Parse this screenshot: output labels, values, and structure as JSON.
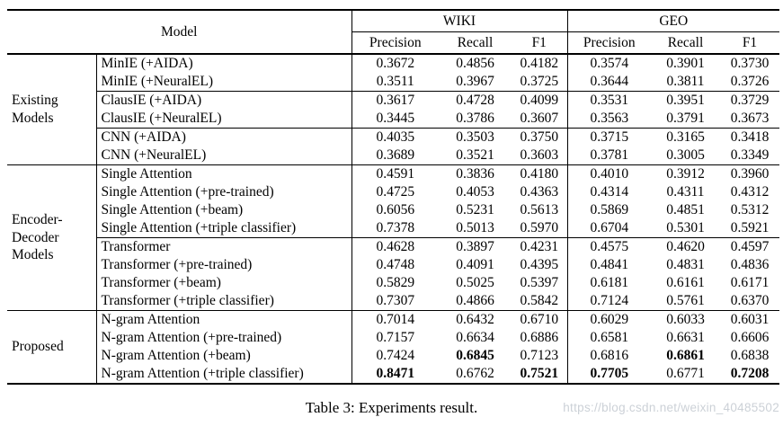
{
  "table": {
    "header": {
      "model": "Model",
      "wiki": "WIKI",
      "geo": "GEO",
      "metrics": [
        "Precision",
        "Recall",
        "F1",
        "Precision",
        "Recall",
        "F1"
      ]
    },
    "groups": [
      {
        "label": "Existing\nModels",
        "rows": [
          {
            "model": "MinIE (+AIDA)",
            "values": [
              "0.3672",
              "0.4856",
              "0.4182",
              "0.3574",
              "0.3901",
              "0.3730"
            ]
          },
          {
            "model": "MinIE (+NeuralEL)",
            "values": [
              "0.3511",
              "0.3967",
              "0.3725",
              "0.3644",
              "0.3811",
              "0.3726"
            ],
            "sep_after": true
          },
          {
            "model": "ClausIE (+AIDA)",
            "values": [
              "0.3617",
              "0.4728",
              "0.4099",
              "0.3531",
              "0.3951",
              "0.3729"
            ]
          },
          {
            "model": "ClausIE (+NeuralEL)",
            "values": [
              "0.3445",
              "0.3786",
              "0.3607",
              "0.3563",
              "0.3791",
              "0.3673"
            ],
            "sep_after": true
          },
          {
            "model": "CNN (+AIDA)",
            "values": [
              "0.4035",
              "0.3503",
              "0.3750",
              "0.3715",
              "0.3165",
              "0.3418"
            ]
          },
          {
            "model": "CNN (+NeuralEL)",
            "values": [
              "0.3689",
              "0.3521",
              "0.3603",
              "0.3781",
              "0.3005",
              "0.3349"
            ]
          }
        ]
      },
      {
        "label": "Encoder-\nDecoder\nModels",
        "rows": [
          {
            "model": "Single Attention",
            "values": [
              "0.4591",
              "0.3836",
              "0.4180",
              "0.4010",
              "0.3912",
              "0.3960"
            ]
          },
          {
            "model": "Single Attention (+pre-trained)",
            "values": [
              "0.4725",
              "0.4053",
              "0.4363",
              "0.4314",
              "0.4311",
              "0.4312"
            ]
          },
          {
            "model": "Single Attention (+beam)",
            "values": [
              "0.6056",
              "0.5231",
              "0.5613",
              "0.5869",
              "0.4851",
              "0.5312"
            ]
          },
          {
            "model": "Single Attention (+triple classifier)",
            "values": [
              "0.7378",
              "0.5013",
              "0.5970",
              "0.6704",
              "0.5301",
              "0.5921"
            ],
            "sep_after": true
          },
          {
            "model": "Transformer",
            "values": [
              "0.4628",
              "0.3897",
              "0.4231",
              "0.4575",
              "0.4620",
              "0.4597"
            ]
          },
          {
            "model": "Transformer (+pre-trained)",
            "values": [
              "0.4748",
              "0.4091",
              "0.4395",
              "0.4841",
              "0.4831",
              "0.4836"
            ]
          },
          {
            "model": "Transformer (+beam)",
            "values": [
              "0.5829",
              "0.5025",
              "0.5397",
              "0.6181",
              "0.6161",
              "0.6171"
            ]
          },
          {
            "model": "Transformer (+triple classifier)",
            "values": [
              "0.7307",
              "0.4866",
              "0.5842",
              "0.7124",
              "0.5761",
              "0.6370"
            ]
          }
        ]
      },
      {
        "label": "Proposed",
        "rows": [
          {
            "model": "N-gram Attention",
            "values": [
              "0.7014",
              "0.6432",
              "0.6710",
              "0.6029",
              "0.6033",
              "0.6031"
            ]
          },
          {
            "model": "N-gram Attention (+pre-trained)",
            "values": [
              "0.7157",
              "0.6634",
              "0.6886",
              "0.6581",
              "0.6631",
              "0.6606"
            ]
          },
          {
            "model": "N-gram Attention (+beam)",
            "values": [
              "0.7424",
              "0.6845",
              "0.7123",
              "0.6816",
              "0.6861",
              "0.6838"
            ],
            "bold": [
              1,
              4
            ]
          },
          {
            "model": "N-gram Attention (+triple classifier)",
            "values": [
              "0.8471",
              "0.6762",
              "0.7521",
              "0.7705",
              "0.6771",
              "0.7208"
            ],
            "bold": [
              0,
              2,
              3,
              5
            ]
          }
        ]
      }
    ]
  },
  "caption": "Table 3: Experiments result.",
  "watermark": "https://blog.csdn.net/weixin_40485502"
}
